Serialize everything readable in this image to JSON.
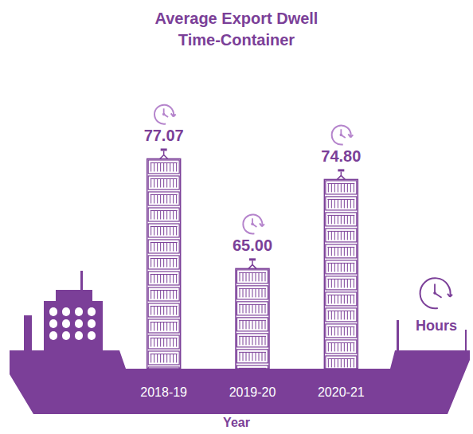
{
  "chart_data": {
    "type": "bar",
    "title": "Average Export Dwell Time-Container",
    "categories": [
      "2018-19",
      "2019-20",
      "2020-21"
    ],
    "values": [
      77.07,
      65,
      74.8
    ],
    "value_labels": [
      "77.07",
      "65.00",
      "74.80"
    ],
    "color": "#7b3f98",
    "ylim": [
      54,
      80
    ],
    "x_label": "Year",
    "y_label": "Hours",
    "data_labels": true,
    "tick_labels": "x",
    "grid": false
  }
}
